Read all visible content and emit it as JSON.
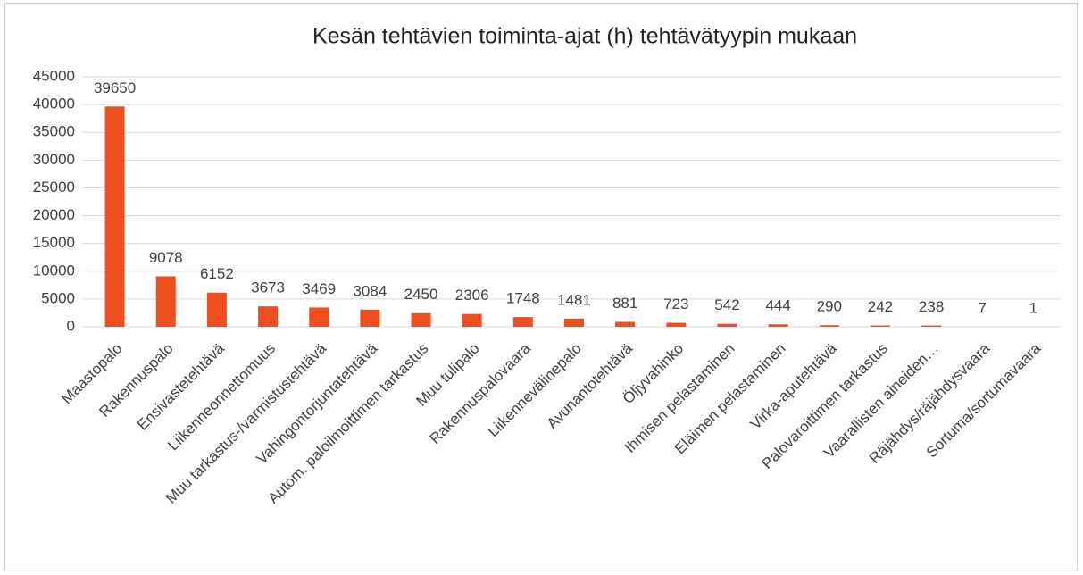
{
  "chart_data": {
    "type": "bar",
    "title": "Kesän tehtävien toiminta-ajat (h) tehtävätyypin mukaan",
    "categories": [
      "Maastopalo",
      "Rakennuspalo",
      "Ensivastetehtävä",
      "Liikenneonnettomuus",
      "Muu tarkastus-/varmistustehtävä",
      "Vahingontorjuntatehtävä",
      "Autom. paloilmoittimen tarkastus",
      "Muu tulipalo",
      "Rakennuspalovaara",
      "Liikennevälinepalo",
      "Avunantotehtävä",
      "Öljyvahinko",
      "Ihmisen pelastaminen",
      "Eläimen pelastaminen",
      "Virka-aputehtävä",
      "Palovaroittimen tarkastus",
      "Vaarallisten aineiden…",
      "Räjähdys/räjähdysvaara",
      "Sortuma/sortumavaara"
    ],
    "values": [
      39650,
      9078,
      6152,
      3673,
      3469,
      3084,
      2450,
      2306,
      1748,
      1481,
      881,
      723,
      542,
      444,
      290,
      242,
      238,
      7,
      1
    ],
    "color": "#ee4f1f",
    "ylim": [
      0,
      45000
    ],
    "yticks": [
      0,
      5000,
      10000,
      15000,
      20000,
      25000,
      30000,
      35000,
      40000,
      45000
    ],
    "grid": true
  }
}
